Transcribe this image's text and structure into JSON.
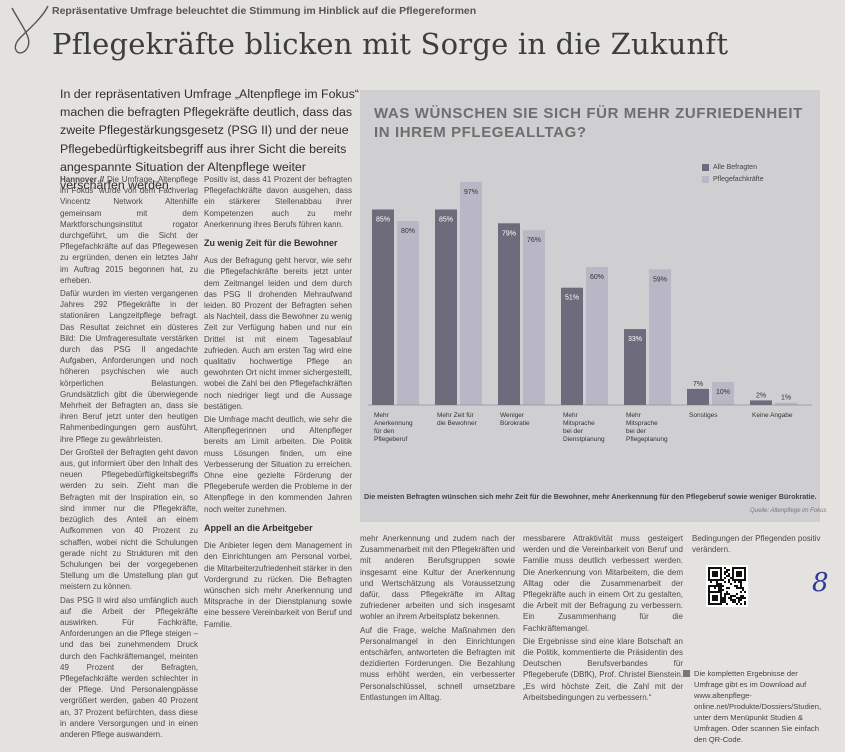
{
  "article": {
    "kicker": "Repräsentative Umfrage beleuchtet die Stimmung im Hinblick auf die Pflegereformen",
    "headline": "Pflegekräfte blicken mit Sorge in die Zukunft",
    "lead": "In der repräsentativen Umfrage „Altenpflege im Fokus“ machen die befragten Pflegekräfte deutlich, dass das zweite Pflegestärkungsgesetz (PSG II) und der neue Pflegebedürftigkeitsbegriff aus ihrer Sicht die bereits angespannte Situation der Altenpflege weiter verschärfen werden.",
    "col1": {
      "byline": "Hannover //",
      "p1": "Die Umfrage „Altenpflege im Fokus“ wurde von dem Fachverlag Vincentz Network Altenhilfe gemeinsam mit dem Marktforschungsinstitut rogator durchgeführt, um die Sicht der Pflegefachkräfte auf das Pflegewesen zu ergründen, denen ein letztes Jahr im Auftrag 2015 begonnen hat, zu erheben.",
      "p2": "Dafür wurden im vierten vergangenen Jahres 292 Pflegekräfte in der stationären Langzeitpflege befragt. Das Resultat zeichnet ein düsteres Bild: Die Umfrageresultate verstärken durch das PSG II angedachte Aufgaben, Anforderungen und noch höheren psychischen wie auch körperlichen Belastungen. Grundsätzlich gibt die überwiegende Mehrheit der Befragten an, dass sie ihren Beruf jetzt unter den heutigen Rahmenbedingungen gern ausführt, ihre Pflege zu gewährleisten.",
      "p3": "Der Großteil der Befragten geht davon aus, gut informiert über den Inhalt des neuen Pflegebedürftigkeitsbegriffs werden zu sein. Zieht man die Befragten mit der Inspiration ein, so sind immer nur die Pflegekräfte, bezüglich des Anteil an einem Aufkommen von 40 Prozent zu schaffen, wobei nicht die Schulungen gerade nicht zu Strukturen mit den Schulungen bei der vorgegebenen Stellung um die Umstellung plan gut meistern zu können.",
      "p4": "Das PSG II wird also umfänglich auch auf die Arbeit der Pflegekräfte auswirken. Für Fachkräfte, Anforderungen an die Pflege steigen – und das bei zunehmendem Druck durch den Fachkräftemangel, meinten 49 Prozent der Befragten, Pflegefachkräfte werden schlechter in der Pflege. Und Personalengpässe vergrößert werden, gaben 40 Prozent an, 37 Prozent befürchten, dass diese in andere Versorgungen und in einen anderen Pflege auswandern."
    },
    "col2": {
      "p1": "Positiv ist, dass 41 Prozent der befragten Pflegefachkräfte davon ausgehen, dass ein stärkerer Stellenabbau ihrer Kompetenzen auch zu mehr Anerkennung ihres Berufs führen kann.",
      "sub1": "Zu wenig Zeit für die Bewohner",
      "p2": "Aus der Befragung geht hervor, wie sehr die Pflegefachkräfte bereits jetzt unter dem Zeitmangel leiden und dem durch das PSG II drohenden Mehraufwand leiden. 80 Prozent der Befragten sehen als Nachteil, dass die Bewohner zu wenig Zeit zur Verfügung haben und nur ein Drittel ist mit einem Tagesablauf zufrieden. Auch am ersten Tag wird eine qualitativ hochwertige Pflege an gewohnten Ort nicht immer sichergestellt, wobei die Zahl bei den Pflegefachkräften noch niedriger liegt und die Aussage bestätigen.",
      "p3": "Die Umfrage macht deutlich, wie sehr die Altenpflegerinnen und Altenpfleger bereits am Limit arbeiten. Die Politik muss Lösungen finden, um eine Verbesserung der Situation zu erreichen. Ohne eine gezielte Förderung der Pflegeberufe werden die Probleme in der Altenpflege in den kommenden Jahren noch weiter zunehmen.",
      "sub2": "Appell an die Arbeitgeber",
      "p4": "Die Anbieter legen dem Management in den Einrichtungen am Personal vorbei, die Mitarbeiterzufriedenheit stärker in den Vordergrund zu rücken. Die Befragten wünschen sich mehr Anerkennung und Mitsprache in der Dienstplanung sowie eine bessere Vereinbarkeit von Beruf und Familie."
    },
    "col3": {
      "p1": "mehr Anerkennung und zudem nach der Zusammenarbeit mit den Pflegekräften und mit anderen Berufsgruppen sowie insgesamt eine Kultur der Anerkennung und Wertschätzung als Voraussetzung dafür, dass Pflegekräfte im Alltag zufriedener arbeiten und sich insgesamt wohler an ihrem Arbeitsplatz bekennen.",
      "p2": "Auf die Frage, welche Maßnahmen den Personalmangel in den Einrichtungen entschärfen, antworteten die Befragten mit dezidierten Forderungen. Die Bezahlung muss erhöht werden, ein verbesserter Personalschlüssel, schnell umsetzbare Entlastungen im Alltag."
    },
    "col4": {
      "p1": "messbarere Attraktivität muss gesteigert werden und die Vereinbarkeit von Beruf und Familie muss deutlich verbessert werden. Die Anerkennung von Mitarbeitern, die dem Alltag oder die Zusammenarbeit der Pflegekräfte auch in einem Ort zu gestalten, die Arbeit mit der Befragung zu verbessern. Ein Zusammenhang für die Fachkräftemangel.",
      "p2": "Die Ergebnisse sind eine klare Botschaft an die Politik, kommentierte die Präsidentin des Deutschen Berufsverbandes für Pflegeberufe (DBfK), Prof. Christel Bienstein. „Es wird höchste Zeit, die Zahl mit der Arbeitsbedingungen zu verbessern.“"
    },
    "right_top": "Bedingungen der Pflegenden positiv verändern.",
    "sidebar_note": "Die kompletten Ergebnisse der Umfrage gibt es im Download auf www.altenpflege-online.net/Produkte/Dossiers/Studien, unter dem Menüpunkt Studien & Umfragen. Oder scannen Sie einfach den QR-Code.",
    "scribble": "8"
  },
  "chart_data": {
    "type": "bar",
    "title": "WAS WÜNSCHEN SIE SICH FÜR MEHR ZUFRIEDENHEIT IN IHREM PFLEGEALLTAG?",
    "categories": [
      "Mehr Anerkennung für den Pflegeberuf",
      "Mehr Zeit für die Bewohner",
      "Weniger Bürokratie",
      "Mehr Mitsprache bei der Dienstplanung",
      "Mehr Mitsprache bei der Pflegeplanung",
      "Sonstiges",
      "Keine Angabe"
    ],
    "series": [
      {
        "name": "Alle Befragten",
        "values": [
          85,
          85,
          79,
          51,
          33,
          7,
          2
        ],
        "labels": [
          "85%",
          "85%",
          "79%",
          "51%",
          "33%",
          "7%",
          "2%"
        ],
        "color": "#6d6b7c"
      },
      {
        "name": "Pflegefachkräfte",
        "values": [
          80,
          97,
          76,
          60,
          59,
          10,
          1
        ],
        "labels": [
          "80%",
          "97%",
          "76%",
          "60%",
          "59%",
          "10%",
          "1%"
        ],
        "color": "#b9b6c6"
      }
    ],
    "ylim": [
      0,
      100
    ],
    "caption": "Die meisten Befragten wünschen sich mehr Zeit für die Bewohner, mehr Anerkennung für den Pflegeberuf sowie weniger Bürokratie.",
    "source": "Quelle: Altenpflege im Fokus"
  }
}
